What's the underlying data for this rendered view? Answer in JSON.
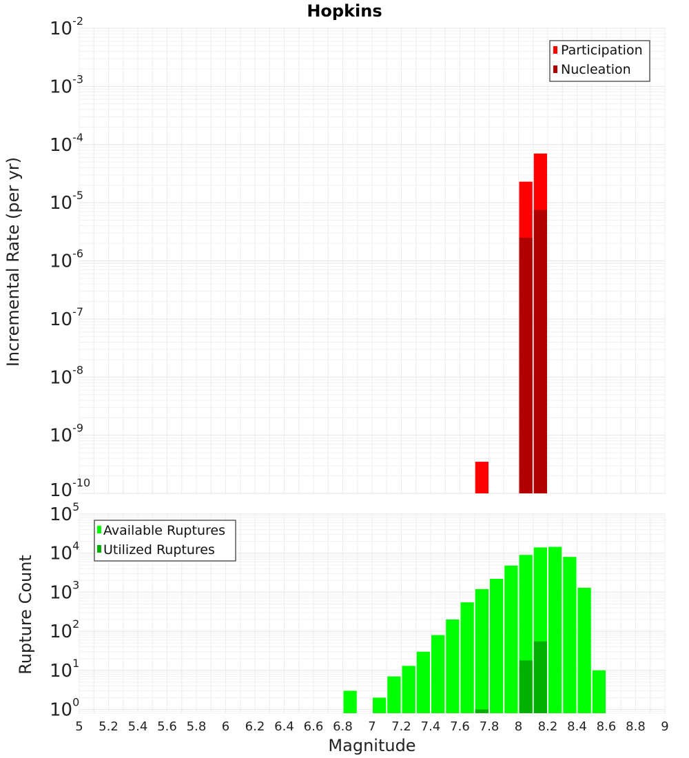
{
  "chart_data": [
    {
      "type": "bar",
      "title": "Hopkins",
      "xlabel": "Magnitude",
      "ylabel": "Incremental Rate (per yr)",
      "yscale": "log",
      "ylim": [
        1e-10,
        0.01
      ],
      "xlim": [
        5,
        9
      ],
      "grid": true,
      "legend_position": "top-right",
      "series": [
        {
          "name": "Participation",
          "color": "#ff0000",
          "points": [
            {
              "x": 7.75,
              "y": 3.5e-10
            },
            {
              "x": 8.05,
              "y": 2.3e-05
            },
            {
              "x": 8.15,
              "y": 7e-05
            }
          ]
        },
        {
          "name": "Nucleation",
          "color": "#b00000",
          "points": [
            {
              "x": 8.05,
              "y": 2.5e-06
            },
            {
              "x": 8.15,
              "y": 7.5e-06
            }
          ]
        }
      ]
    },
    {
      "type": "bar",
      "xlabel": "Magnitude",
      "ylabel": "Rupture Count",
      "yscale": "log",
      "ylim": [
        0.8,
        100000.0
      ],
      "xlim": [
        5,
        9
      ],
      "grid": true,
      "legend_position": "top-left",
      "series": [
        {
          "name": "Available Ruptures",
          "color": "#00ff00",
          "points": [
            {
              "x": 6.85,
              "y": 3
            },
            {
              "x": 7.05,
              "y": 2
            },
            {
              "x": 7.15,
              "y": 7
            },
            {
              "x": 7.25,
              "y": 13
            },
            {
              "x": 7.35,
              "y": 30
            },
            {
              "x": 7.45,
              "y": 80
            },
            {
              "x": 7.55,
              "y": 200
            },
            {
              "x": 7.65,
              "y": 550
            },
            {
              "x": 7.75,
              "y": 1200
            },
            {
              "x": 7.85,
              "y": 2200
            },
            {
              "x": 7.95,
              "y": 4800
            },
            {
              "x": 8.05,
              "y": 9000
            },
            {
              "x": 8.15,
              "y": 14000
            },
            {
              "x": 8.25,
              "y": 14500
            },
            {
              "x": 8.35,
              "y": 8000
            },
            {
              "x": 8.45,
              "y": 1300
            },
            {
              "x": 8.55,
              "y": 10
            }
          ]
        },
        {
          "name": "Utilized Ruptures",
          "color": "#00b000",
          "points": [
            {
              "x": 7.75,
              "y": 1
            },
            {
              "x": 8.05,
              "y": 18
            },
            {
              "x": 8.15,
              "y": 55
            }
          ]
        }
      ]
    }
  ],
  "top_yticks": [
    {
      "base": "10",
      "exp": "-2"
    },
    {
      "base": "10",
      "exp": "-3"
    },
    {
      "base": "10",
      "exp": "-4"
    },
    {
      "base": "10",
      "exp": "-5"
    },
    {
      "base": "10",
      "exp": "-6"
    },
    {
      "base": "10",
      "exp": "-7"
    },
    {
      "base": "10",
      "exp": "-8"
    },
    {
      "base": "10",
      "exp": "-9"
    },
    {
      "base": "10",
      "exp": "-10"
    }
  ],
  "bottom_yticks": [
    {
      "base": "10",
      "exp": "5"
    },
    {
      "base": "10",
      "exp": "4"
    },
    {
      "base": "10",
      "exp": "3"
    },
    {
      "base": "10",
      "exp": "2"
    },
    {
      "base": "10",
      "exp": "1"
    },
    {
      "base": "10",
      "exp": "0"
    }
  ],
  "xticks": [
    "5",
    "5.2",
    "5.4",
    "5.6",
    "5.8",
    "6",
    "6.2",
    "6.4",
    "6.6",
    "6.8",
    "7",
    "7.2",
    "7.4",
    "7.6",
    "7.8",
    "8",
    "8.2",
    "8.4",
    "8.6",
    "8.8",
    "9"
  ]
}
